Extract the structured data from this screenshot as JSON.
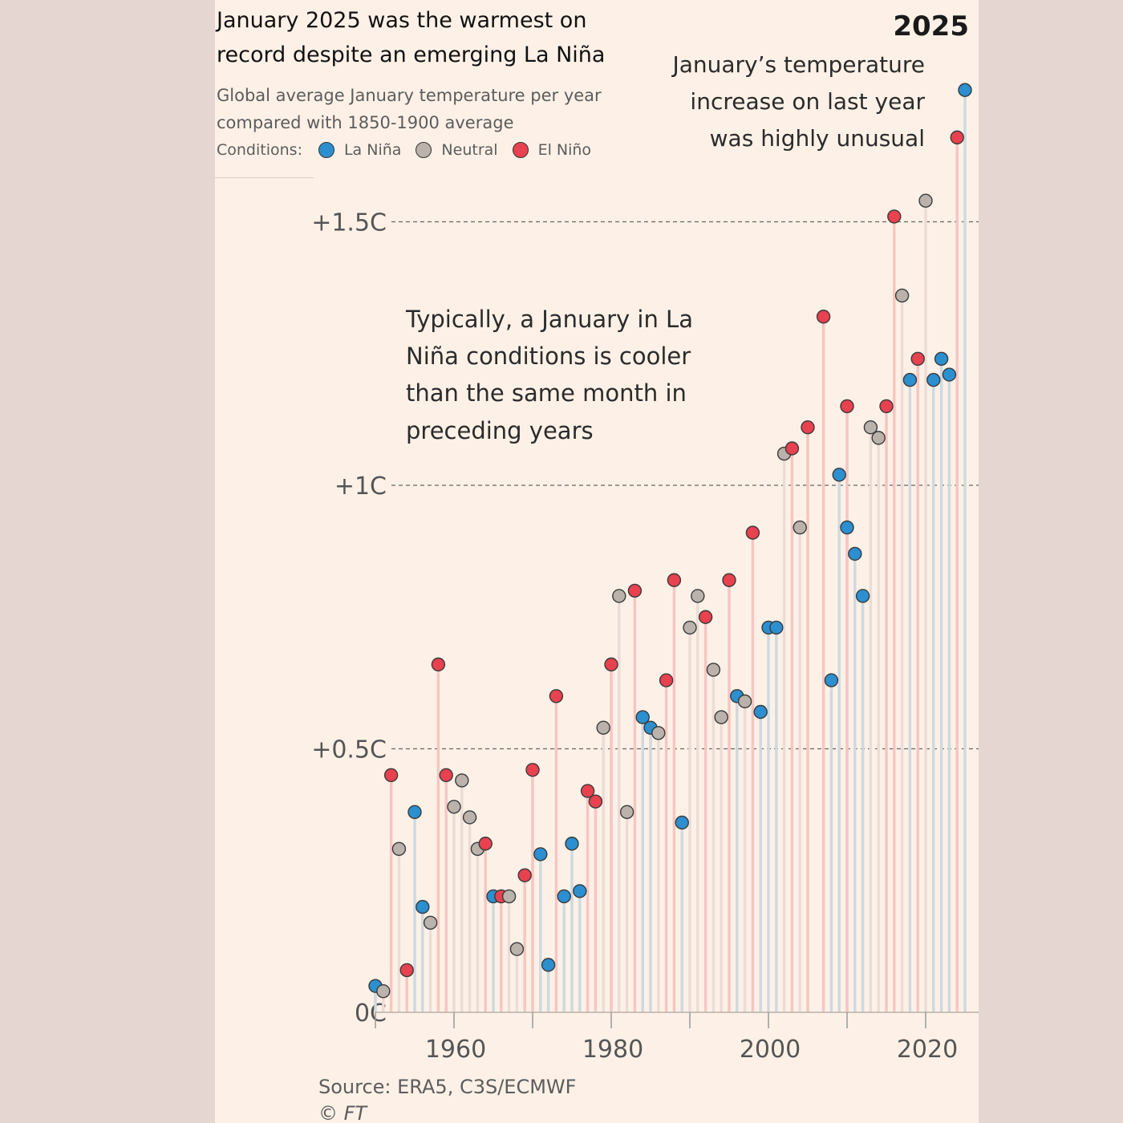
{
  "header": {
    "title": "January 2025 was the warmest on record despite an emerging La Niña",
    "subtitle": "Global average January temperature per year compared with 1850-1900 average"
  },
  "legend": {
    "label": "Conditions:",
    "items": [
      {
        "name": "La Niña",
        "color": "#2b8fd0"
      },
      {
        "name": "Neutral",
        "color": "#bab2ab"
      },
      {
        "name": "El Niño",
        "color": "#e8414f"
      }
    ]
  },
  "annotations": {
    "year_label": "2025",
    "right_lines": [
      "January’s temperature",
      "increase on last year",
      "was highly unusual"
    ],
    "middle_lines": [
      "Typically, a January in La",
      "Niña conditions is cooler",
      "than the same month in",
      "preceding years"
    ]
  },
  "source": {
    "text": "Source: ERA5, C3S/ECMWF",
    "credit": "© FT"
  },
  "colors": {
    "la_nina": "#2b8fd0",
    "neutral": "#bab2ab",
    "el_nino": "#e8414f",
    "background": "#fdf1e7"
  },
  "chart_data": {
    "type": "scatter",
    "title": "January 2025 was the warmest on record despite an emerging La Niña",
    "subtitle": "Global average January temperature per year compared with 1850-1900 average",
    "xlabel": "",
    "ylabel": "",
    "xlim": [
      1950,
      2026
    ],
    "ylim": [
      0,
      1.75
    ],
    "x_ticks": [
      1960,
      1980,
      2000,
      2020
    ],
    "x_tick_labels": [
      "1960",
      "1980",
      "2000",
      "2020"
    ],
    "y_ticks": [
      0,
      0.5,
      1.0,
      1.5
    ],
    "y_tick_labels": [
      "0C",
      "+0.5C",
      "+1C",
      "+1.5C"
    ],
    "grid": "dashed horizontal lines at +0.5C, +1C, +1.5C",
    "legend": "top-left, below subtitle",
    "series": [
      {
        "name": "La Niña",
        "key": "la_nina",
        "x": [
          1950,
          1955,
          1956,
          1965,
          1971,
          1972,
          1974,
          1975,
          1976,
          1984,
          1985,
          1989,
          1996,
          1999,
          2000,
          2001,
          2008,
          2009,
          2010,
          2011,
          2012,
          2018,
          2021,
          2022,
          2023,
          2025
        ],
        "y": [
          0.05,
          0.38,
          0.2,
          0.22,
          0.3,
          0.09,
          0.22,
          0.32,
          0.23,
          0.56,
          0.54,
          0.36,
          0.6,
          0.57,
          0.73,
          0.73,
          0.63,
          1.02,
          0.92,
          0.87,
          0.79,
          1.2,
          1.2,
          1.24,
          1.21,
          1.75
        ]
      },
      {
        "name": "Neutral",
        "key": "neutral",
        "x": [
          1951,
          1953,
          1957,
          1960,
          1961,
          1962,
          1963,
          1967,
          1968,
          1979,
          1981,
          1982,
          1986,
          1990,
          1991,
          1993,
          1994,
          1997,
          2002,
          2004,
          2013,
          2014,
          2017,
          2020
        ],
        "y": [
          0.04,
          0.31,
          0.17,
          0.39,
          0.44,
          0.37,
          0.31,
          0.22,
          0.12,
          0.54,
          0.79,
          0.38,
          0.53,
          0.73,
          0.79,
          0.65,
          0.56,
          0.59,
          1.06,
          0.92,
          1.11,
          1.09,
          1.36,
          1.54
        ]
      },
      {
        "name": "El Niño",
        "key": "el_nino",
        "x": [
          1952,
          1954,
          1958,
          1959,
          1964,
          1966,
          1969,
          1970,
          1973,
          1977,
          1978,
          1980,
          1983,
          1987,
          1988,
          1992,
          1995,
          1998,
          2003,
          2005,
          2007,
          2010,
          2015,
          2016,
          2019,
          2024
        ],
        "y": [
          0.45,
          0.08,
          0.66,
          0.45,
          0.32,
          0.22,
          0.26,
          0.46,
          0.6,
          0.42,
          0.4,
          0.66,
          0.8,
          0.63,
          0.82,
          0.75,
          0.82,
          0.91,
          1.07,
          1.11,
          1.32,
          1.15,
          1.15,
          1.51,
          1.24,
          1.66
        ]
      }
    ]
  }
}
